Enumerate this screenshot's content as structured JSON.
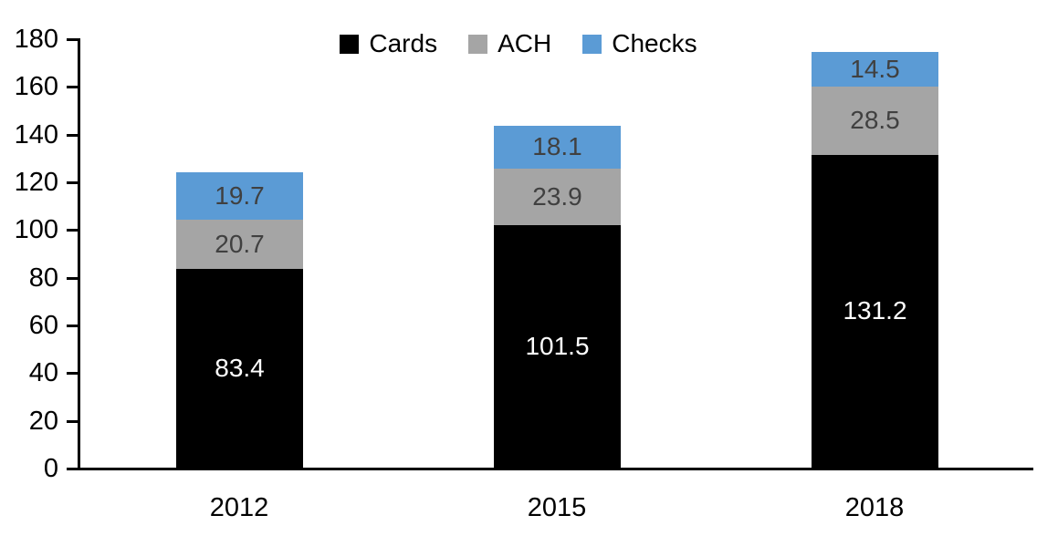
{
  "chart_data": {
    "type": "bar",
    "stacked": true,
    "title": "",
    "xlabel": "",
    "ylabel": "",
    "categories": [
      "2012",
      "2015",
      "2018"
    ],
    "series": [
      {
        "name": "Cards",
        "color": "#000000",
        "label_color": "#ffffff",
        "values": [
          83.4,
          101.5,
          131.2
        ]
      },
      {
        "name": "ACH",
        "color": "#a5a5a5",
        "label_color": "#404040",
        "values": [
          20.7,
          23.9,
          28.5
        ]
      },
      {
        "name": "Checks",
        "color": "#5b9bd5",
        "label_color": "#404040",
        "values": [
          19.7,
          18.1,
          14.5
        ]
      }
    ],
    "totals": [
      123.8,
      143.5,
      174.2
    ],
    "ylim": [
      0,
      180
    ],
    "ytick_step": 20,
    "ytick_labels": [
      "0",
      "20",
      "40",
      "60",
      "80",
      "100",
      "120",
      "140",
      "160",
      "180"
    ],
    "grid": false,
    "legend_position": "top-center",
    "legend_entries": [
      "Cards",
      "ACH",
      "Checks"
    ],
    "axis_color": "#000000",
    "background_color": "#ffffff"
  }
}
